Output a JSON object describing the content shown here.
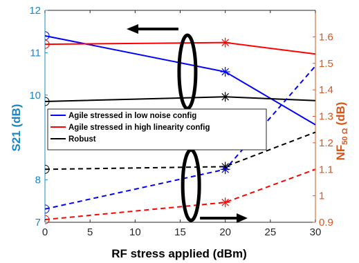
{
  "chart_data": {
    "type": "line",
    "xlabel": "RF stress applied (dBm)",
    "ylabel_left": "S21 (dB)",
    "ylabel_right_main": "NF",
    "ylabel_right_sub": "50 Ω",
    "ylabel_right_unit": "(dB)",
    "xlim": [
      0,
      30
    ],
    "ylim_left": [
      7,
      12
    ],
    "ylim_right": [
      0.9,
      1.7
    ],
    "x_ticks": [
      0,
      5,
      10,
      15,
      20,
      25,
      30
    ],
    "y_left_ticks": [
      7,
      8,
      10,
      11,
      12
    ],
    "y_right_ticks": [
      0.9,
      1,
      1.1,
      1.2,
      1.3,
      1.4,
      1.5,
      1.6
    ],
    "left_axis_color": "#1a86c8",
    "right_axis_color": "#d9541a",
    "legend": {
      "placement": "center-left",
      "entries": [
        {
          "label": "Agile stressed in low noise config",
          "color": "#0000ff"
        },
        {
          "label": "Agile stressed in high linearity config",
          "color": "#ff0000"
        },
        {
          "label": "Robust",
          "color": "#000000"
        }
      ]
    },
    "series": [
      {
        "color": "#0000ff",
        "axis": "left",
        "style": "solid",
        "x": [
          0,
          20,
          30
        ],
        "y": [
          11.4,
          10.55,
          9.3
        ],
        "marker_x": 20
      },
      {
        "color": "#ff0000",
        "axis": "left",
        "style": "solid",
        "x": [
          0,
          20,
          30
        ],
        "y": [
          11.2,
          11.24,
          10.97
        ],
        "marker_x": 20
      },
      {
        "color": "#000000",
        "axis": "left",
        "style": "solid",
        "x": [
          0,
          20,
          30
        ],
        "y": [
          9.85,
          9.96,
          9.87
        ],
        "marker_x": 20
      },
      {
        "color": "#0000ff",
        "axis": "right",
        "style": "dashed",
        "x": [
          0,
          20,
          30
        ],
        "y": [
          0.95,
          1.1,
          1.49
        ],
        "marker_x": 20
      },
      {
        "color": "#ff0000",
        "axis": "right",
        "style": "dashed",
        "x": [
          0,
          20,
          30
        ],
        "y": [
          0.91,
          0.975,
          1.1
        ],
        "marker_x": 20
      },
      {
        "color": "#000000",
        "axis": "right",
        "style": "dashed",
        "x": [
          0,
          20,
          30
        ],
        "y": [
          1.1,
          1.11,
          1.24
        ],
        "marker_x": 20
      }
    ]
  }
}
